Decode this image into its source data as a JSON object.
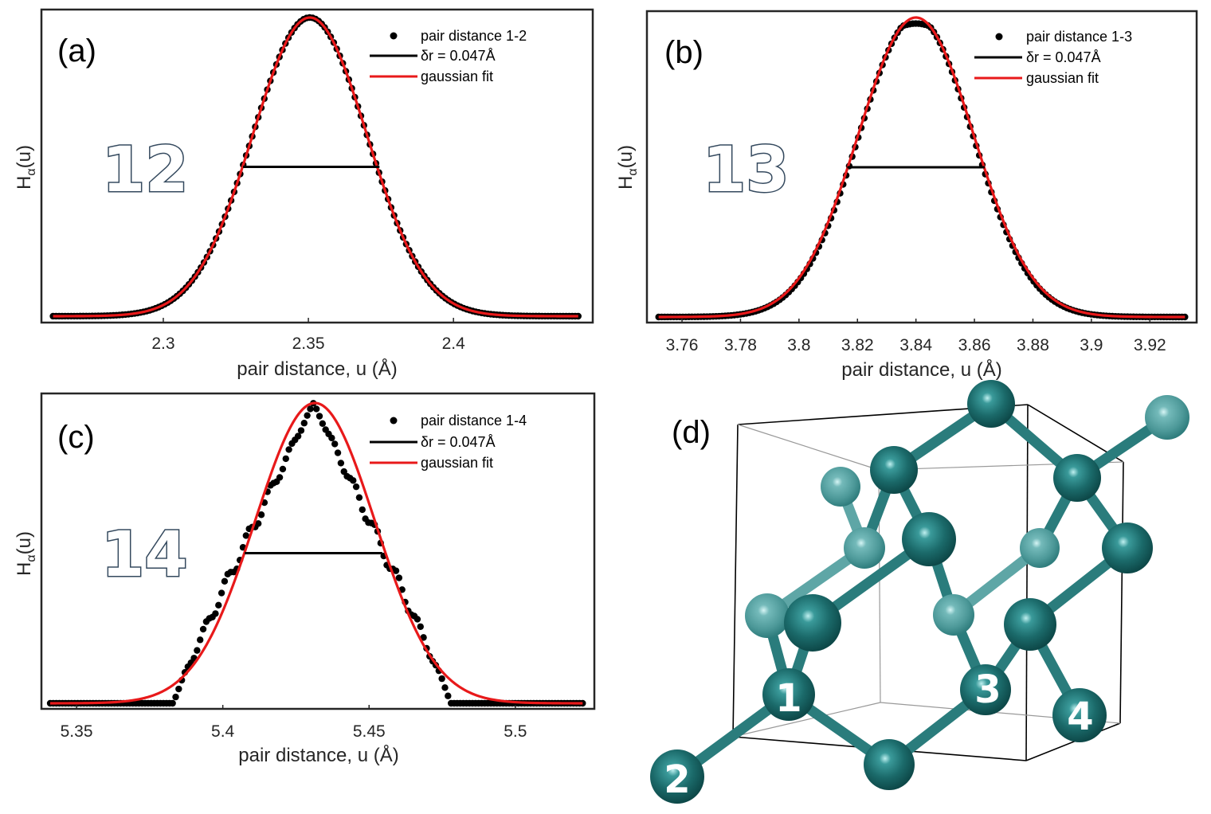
{
  "chart_data": [
    {
      "panel": "(a)",
      "type": "scatter",
      "xlabel": "pair distance, u (Å)",
      "ylabel": "H_α(u)",
      "xlim": [
        2.258,
        2.448
      ],
      "xticks": [
        "2.3",
        "2.35",
        "2.4"
      ],
      "xtick_values": [
        2.3,
        2.35,
        2.4
      ],
      "big_label": "12",
      "legend": {
        "position": "top-right",
        "entries": [
          "pair distance 1-2",
          "δr = 0.047Å",
          "gaussian fit"
        ]
      },
      "series": [
        {
          "name": "pair distance 1-2",
          "kind": "points",
          "shape": "gaussian",
          "mu": 2.3505,
          "sigma": 0.0197,
          "amplitude": 1.0,
          "x_range": [
            2.262,
            2.443
          ],
          "count": 175
        },
        {
          "name": "δr = 0.047Å",
          "kind": "hline",
          "x": [
            2.3275,
            2.3745
          ],
          "y": 0.5
        },
        {
          "name": "gaussian fit",
          "kind": "line",
          "mu": 2.3505,
          "sigma": 0.0197,
          "amplitude": 1.0
        }
      ]
    },
    {
      "panel": "(b)",
      "type": "scatter",
      "xlabel": "pair distance, u (Å)",
      "ylabel": "H_α(u)",
      "xlim": [
        3.748,
        3.936
      ],
      "xticks": [
        "3.76",
        "3.78",
        "3.8",
        "3.82",
        "3.84",
        "3.86",
        "3.88",
        "3.9",
        "3.92"
      ],
      "xtick_values": [
        3.76,
        3.78,
        3.8,
        3.82,
        3.84,
        3.86,
        3.88,
        3.9,
        3.92
      ],
      "big_label": "13",
      "legend": {
        "position": "top-right",
        "entries": [
          "pair distance 1-3",
          "δr = 0.047Å",
          "gaussian fit"
        ]
      },
      "series": [
        {
          "name": "pair distance 1-3",
          "kind": "points",
          "shape": "flat-top",
          "mu": 3.84,
          "sigma": 0.0195,
          "amplitude": 0.97,
          "x_range": [
            3.752,
            3.932
          ],
          "count": 175
        },
        {
          "name": "δr = 0.047Å",
          "kind": "hline",
          "x": [
            3.8165,
            3.8635
          ],
          "y": 0.5
        },
        {
          "name": "gaussian fit",
          "kind": "line",
          "mu": 3.84,
          "sigma": 0.0198,
          "amplitude": 1.0
        }
      ]
    },
    {
      "panel": "(c)",
      "type": "scatter",
      "xlabel": "pair distance, u (Å)",
      "ylabel": "H_α(u)",
      "xlim": [
        5.338,
        5.527
      ],
      "xticks": [
        "5.35",
        "5.4",
        "5.45",
        "5.5"
      ],
      "xtick_values": [
        5.35,
        5.4,
        5.45,
        5.5
      ],
      "big_label": "14",
      "legend": {
        "position": "top-right",
        "entries": [
          "pair distance 1-4",
          "δr = 0.047Å",
          "gaussian fit"
        ]
      },
      "series": [
        {
          "name": "pair distance 1-4",
          "kind": "points",
          "shape": "triangular",
          "mu": 5.431,
          "support": [
            5.383,
            5.478
          ],
          "amplitude": 1.0,
          "x_range": [
            5.341,
            5.523
          ],
          "count": 175
        },
        {
          "name": "δr = 0.047Å",
          "kind": "hline",
          "x": [
            5.4075,
            5.4545
          ],
          "y": 0.5
        },
        {
          "name": "gaussian fit",
          "kind": "line",
          "mu": 5.4315,
          "sigma": 0.0205,
          "amplitude": 1.0
        }
      ]
    }
  ],
  "structure": {
    "panel": "(d)",
    "atom_labels": [
      "1",
      "2",
      "3",
      "4"
    ],
    "atom_color": "#1e6b6b",
    "atom_highlight": "#7ecfcf"
  },
  "colors": {
    "data_points": "#000000",
    "fit": "#e8191a",
    "fwhm": "#000000",
    "bond": "#2a7c7c",
    "big_label_stroke": "#34495e"
  }
}
